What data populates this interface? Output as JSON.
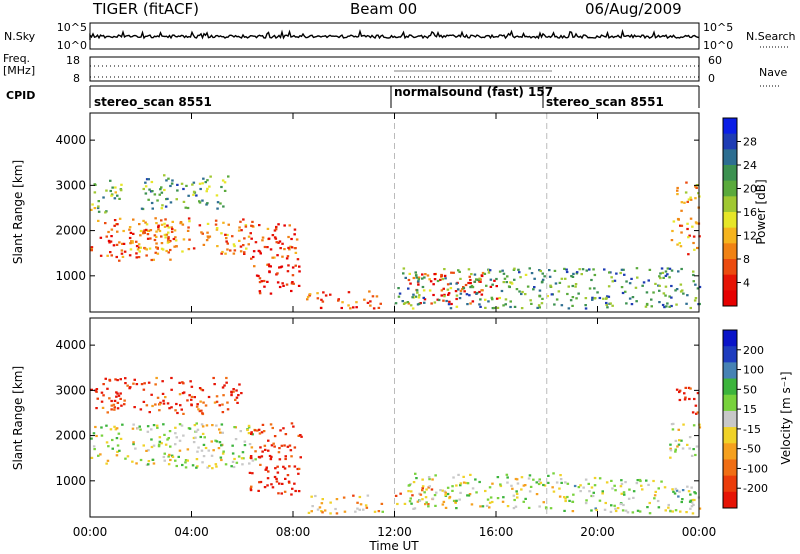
{
  "header": {
    "radar": "TIGER (fitACF)",
    "beam": "Beam 00",
    "date": "06/Aug/2009"
  },
  "top_panels": {
    "nsky_label": "N.Sky",
    "nsky_ticks": [
      "10^5",
      "10^0"
    ],
    "nsearch_label": "N.Search",
    "nsearch_ticks": [
      "10^5",
      "10^0"
    ],
    "freq_label_1": "Freq.",
    "freq_label_2": "[MHz]",
    "freq_ticks": [
      "18",
      "8"
    ],
    "nave_label": "Nave",
    "nave_ticks": [
      "60",
      "0"
    ],
    "cpid_label": "CPID",
    "cpid_segments": [
      {
        "label": "stereo_scan 8551",
        "start_h": 0
      },
      {
        "label": "normalsound (fast) 157",
        "start_h": 12
      },
      {
        "label": "stereo_scan 8551",
        "start_h": 18
      }
    ]
  },
  "colorbars": {
    "power": {
      "title": "Power [dB]",
      "ticks": [
        "28",
        "24",
        "20",
        "16",
        "12",
        "8",
        "4"
      ],
      "colors": [
        "#0a1ee6",
        "#1e3cb4",
        "#2d6e91",
        "#3c9150",
        "#5aaa3c",
        "#a0c832",
        "#e6e628",
        "#f5b41e",
        "#f08214",
        "#eb4b0f",
        "#e61405",
        "#e60000"
      ]
    },
    "velocity": {
      "title": "Velocity [m s⁻¹]",
      "ticks": [
        "200",
        "100",
        "50",
        "15",
        "-15",
        "-50",
        "-100",
        "-200"
      ],
      "colors": [
        "#0a14c8",
        "#1e3cbe",
        "#4682b4",
        "#3cb43c",
        "#78d23c",
        "#c8c8c8",
        "#f0d228",
        "#f5a01e",
        "#f06e14",
        "#eb3c0a",
        "#e61405"
      ]
    }
  },
  "chart_data": [
    {
      "type": "heatmap",
      "name": "power",
      "ylabel": "Slant Range [km]",
      "yticks": [
        1000,
        2000,
        3000,
        4000
      ],
      "ylim": [
        200,
        4600
      ],
      "xlim_hours": [
        0,
        24
      ],
      "blobs": [
        {
          "t0": 0.0,
          "t1": 3.2,
          "r0": 1350,
          "r1": 2300,
          "level": 0.75
        },
        {
          "t0": 0.0,
          "t1": 1.2,
          "r0": 2400,
          "r1": 3200,
          "level": 0.4
        },
        {
          "t0": 1.5,
          "t1": 6.4,
          "r0": 1500,
          "r1": 2300,
          "level": 0.7
        },
        {
          "t0": 2.0,
          "t1": 5.5,
          "r0": 2500,
          "r1": 3250,
          "level": 0.35
        },
        {
          "t0": 6.2,
          "t1": 8.2,
          "r0": 1200,
          "r1": 2200,
          "level": 0.85
        },
        {
          "t0": 6.5,
          "t1": 8.3,
          "r0": 600,
          "r1": 1300,
          "level": 0.95
        },
        {
          "t0": 8.5,
          "t1": 11.5,
          "r0": 300,
          "r1": 700,
          "level": 0.8
        },
        {
          "t0": 12.5,
          "t1": 16.0,
          "r0": 400,
          "r1": 1100,
          "level": 0.85
        },
        {
          "t0": 12.0,
          "t1": 18.5,
          "r0": 300,
          "r1": 1200,
          "level": 0.35
        },
        {
          "t0": 18.5,
          "t1": 24.0,
          "r0": 300,
          "r1": 1200,
          "level": 0.3
        },
        {
          "t0": 22.8,
          "t1": 24.0,
          "r0": 1500,
          "r1": 2300,
          "level": 0.7
        },
        {
          "t0": 23.0,
          "t1": 24.0,
          "r0": 2400,
          "r1": 3100,
          "level": 0.65
        }
      ]
    },
    {
      "type": "heatmap",
      "name": "velocity",
      "ylabel": "Slant Range [km]",
      "yticks": [
        1000,
        2000,
        3000,
        4000
      ],
      "ylim": [
        200,
        4600
      ],
      "xlim_hours": [
        0,
        24
      ],
      "xticks": [
        "00:00",
        "04:00",
        "08:00",
        "12:00",
        "16:00",
        "20:00",
        "00:00"
      ],
      "xlabel": "Time UT",
      "blobs": [
        {
          "t0": 0.0,
          "t1": 6.5,
          "r0": 1300,
          "r1": 2300,
          "level": 0.5
        },
        {
          "t0": 0.0,
          "t1": 6.0,
          "r0": 2500,
          "r1": 3300,
          "level": 0.9
        },
        {
          "t0": 6.2,
          "t1": 8.3,
          "r0": 700,
          "r1": 2300,
          "level": 0.95
        },
        {
          "t0": 8.5,
          "t1": 11.5,
          "r0": 300,
          "r1": 700,
          "level": 0.65
        },
        {
          "t0": 12.0,
          "t1": 13.5,
          "r0": 500,
          "r1": 900,
          "level": 0.7
        },
        {
          "t0": 12.5,
          "t1": 18.5,
          "r0": 400,
          "r1": 1200,
          "level": 0.5
        },
        {
          "t0": 18.5,
          "t1": 24.0,
          "r0": 300,
          "r1": 1100,
          "level": 0.45
        },
        {
          "t0": 22.8,
          "t1": 24.0,
          "r0": 1500,
          "r1": 2300,
          "level": 0.5
        },
        {
          "t0": 23.0,
          "t1": 24.0,
          "r0": 2500,
          "r1": 3100,
          "level": 0.95
        }
      ]
    }
  ]
}
